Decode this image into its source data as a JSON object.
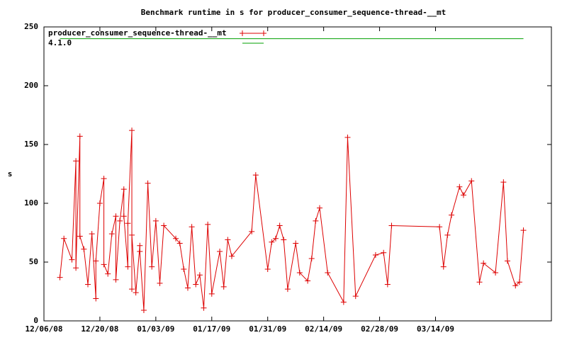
{
  "chart_data": {
    "type": "line",
    "title": "Benchmark runtime in s for producer_consumer_sequence-thread-__mt",
    "y_label": "s",
    "xlim": [
      "12/06/08",
      "04/12/09"
    ],
    "xticks": [
      "12/06/08",
      "12/20/08",
      "01/03/09",
      "01/17/09",
      "01/31/09",
      "02/14/09",
      "02/28/09",
      "03/14/09"
    ],
    "ylim": [
      0,
      250
    ],
    "yticks": [
      0,
      50,
      100,
      150,
      200,
      250
    ],
    "grid": false,
    "legend": "top-left",
    "series": [
      {
        "name": "producer_consumer_sequence-thread-__mt",
        "color": "#dd0000",
        "marker": "plus",
        "x": [
          "12/10/08",
          "12/11/08",
          "12/13/08",
          "12/14/08",
          "12/14/08",
          "12/15/08",
          "12/15/08",
          "12/16/08",
          "12/17/08",
          "12/18/08",
          "12/19/08",
          "12/19/08",
          "12/20/08",
          "12/21/08",
          "12/21/08",
          "12/22/08",
          "12/23/08",
          "12/24/08",
          "12/24/08",
          "12/25/08",
          "12/26/08",
          "12/26/08",
          "12/27/08",
          "12/27/08",
          "12/28/08",
          "12/28/08",
          "12/28/08",
          "12/29/08",
          "12/30/08",
          "12/30/08",
          "12/31/08",
          "01/01/09",
          "01/02/09",
          "01/03/09",
          "01/04/09",
          "01/05/09",
          "01/08/09",
          "01/09/09",
          "01/10/09",
          "01/11/09",
          "01/12/09",
          "01/13/09",
          "01/14/09",
          "01/15/09",
          "01/16/09",
          "01/17/09",
          "01/19/09",
          "01/20/09",
          "01/21/09",
          "01/22/09",
          "01/27/09",
          "01/28/09",
          "01/31/09",
          "02/01/09",
          "02/02/09",
          "02/03/09",
          "02/04/09",
          "02/05/09",
          "02/07/09",
          "02/08/09",
          "02/10/09",
          "02/11/09",
          "02/12/09",
          "02/13/09",
          "02/15/09",
          "02/19/09",
          "02/20/09",
          "02/22/09",
          "02/27/09",
          "03/01/09",
          "03/02/09",
          "03/03/09",
          "03/15/09",
          "03/16/09",
          "03/17/09",
          "03/18/09",
          "03/20/09",
          "03/21/09",
          "03/23/09",
          "03/25/09",
          "03/26/09",
          "03/29/09",
          "03/31/09",
          "04/01/09",
          "04/03/09",
          "04/04/09",
          "04/05/09"
        ],
        "values": [
          37,
          70,
          52,
          136,
          45,
          157,
          72,
          61,
          31,
          74,
          19,
          51,
          100,
          121,
          48,
          40,
          74,
          89,
          35,
          85,
          112,
          89,
          46,
          83,
          162,
          27,
          73,
          24,
          64,
          59,
          9,
          117,
          46,
          85,
          32,
          81,
          70,
          66,
          44,
          28,
          80,
          31,
          39,
          11,
          82,
          23,
          59,
          29,
          69,
          55,
          76,
          124,
          44,
          67,
          70,
          81,
          69,
          27,
          66,
          41,
          34,
          53,
          85,
          96,
          41,
          16,
          156,
          21,
          56,
          58,
          31,
          81,
          80,
          46,
          73,
          90,
          114,
          107,
          119,
          33,
          49,
          41,
          118,
          51,
          30,
          33,
          77
        ]
      },
      {
        "name": "4.1.0",
        "color": "#00a000",
        "marker": "none",
        "x": [
          "12/10/08",
          "04/05/09"
        ],
        "values": [
          240,
          240
        ]
      }
    ]
  }
}
